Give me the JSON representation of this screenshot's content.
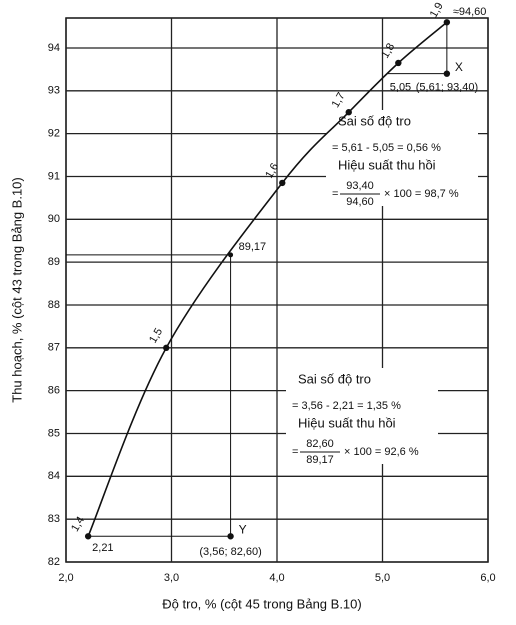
{
  "chart_data": {
    "type": "line",
    "xlabel": "Độ tro, % (cột 45 trong Bảng B.10)",
    "ylabel": "Thu hoạch, % (cột 43 trong Bảng B.10)",
    "xlim": [
      2,
      6
    ],
    "ylim": [
      82,
      94.7
    ],
    "xticks": [
      {
        "value": 2,
        "label": "2,0"
      },
      {
        "value": 3,
        "label": "3,0"
      },
      {
        "value": 4,
        "label": "4,0"
      },
      {
        "value": 5,
        "label": "5,0"
      },
      {
        "value": 6,
        "label": "6,0"
      }
    ],
    "yticks": [
      82,
      83,
      84,
      85,
      86,
      87,
      88,
      89,
      90,
      91,
      92,
      93,
      94
    ],
    "grid": true,
    "x": [
      2.21,
      2.95,
      4.05,
      4.68,
      5.15,
      5.61
    ],
    "series": [
      {
        "color": "#111111",
        "values": [
          82.6,
          87.0,
          90.85,
          92.5,
          93.65,
          94.6
        ],
        "point_labels": [
          "1,4",
          "1,5",
          "1,6",
          "1,7",
          "1,8",
          "1,9"
        ],
        "end_label": "≈94,60"
      }
    ],
    "guides": [
      {
        "x": 5.05,
        "y": 93.4,
        "label": "5,05"
      },
      {
        "x": 3.56,
        "y": 89.17,
        "label": "89,17"
      },
      {
        "x": 2.21,
        "y": 82.6,
        "label": "2,21"
      }
    ],
    "points": [
      {
        "name": "X",
        "x": 5.61,
        "y": 93.4,
        "label": "(5,61; 93,40)"
      },
      {
        "name": "Y",
        "x": 3.56,
        "y": 82.6,
        "label": "(3,56; 82,60)"
      }
    ],
    "notes": [
      {
        "title": "Sai số độ tro",
        "equation": "= 5,61 - 5,05 = 0,56 %",
        "subtitle": "Hiệu suất thu hồi",
        "numerator": "93,40",
        "denominator": "94,60",
        "result": "× 100 = 98,7 %"
      },
      {
        "title": "Sai số độ tro",
        "equation": "= 3,56 - 2,21 = 1,35 %",
        "subtitle": "Hiệu suất thu hồi",
        "numerator": "82,60",
        "denominator": "89,17",
        "result": "× 100 = 92,6 %"
      }
    ]
  }
}
